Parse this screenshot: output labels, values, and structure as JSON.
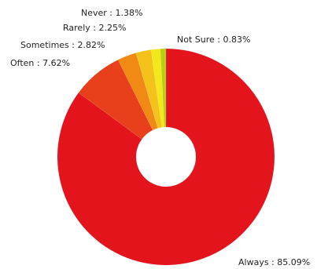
{
  "chart_data": {
    "type": "pie",
    "title": "",
    "donut": true,
    "slices": [
      {
        "label": "Always",
        "value": 85.09,
        "text": "Always : 85.09%",
        "color": "#e3141c"
      },
      {
        "label": "Often",
        "value": 7.62,
        "text": "Often : 7.62%",
        "color": "#e8401a"
      },
      {
        "label": "Sometimes",
        "value": 2.82,
        "text": "Sometimes : 2.82%",
        "color": "#f08a14"
      },
      {
        "label": "Rarely",
        "value": 2.25,
        "text": "Rarely : 2.25%",
        "color": "#f4c21a"
      },
      {
        "label": "Never",
        "value": 1.38,
        "text": "Never : 1.38%",
        "color": "#f2e81c"
      },
      {
        "label": "Not Sure",
        "value": 0.83,
        "text": "Not Sure : 0.83%",
        "color": "#b6d012"
      }
    ]
  }
}
